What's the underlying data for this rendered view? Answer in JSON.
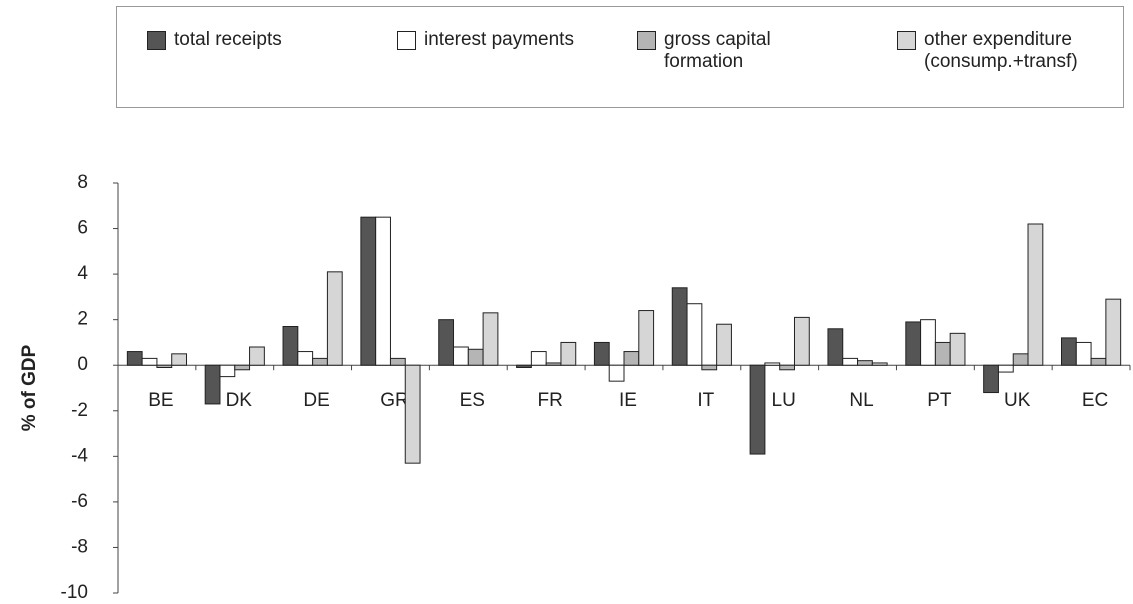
{
  "chart_data": {
    "type": "bar",
    "y_label": "% of GDP",
    "categories": [
      "BE",
      "DK",
      "DE",
      "GR",
      "ES",
      "FR",
      "IE",
      "IT",
      "LU",
      "NL",
      "PT",
      "UK",
      "EC"
    ],
    "series": [
      {
        "name": "total receipts",
        "color": "#555555",
        "values": [
          0.6,
          -1.7,
          1.7,
          6.5,
          2.0,
          -0.1,
          1.0,
          3.4,
          -3.9,
          1.6,
          1.9,
          -1.2,
          1.2
        ]
      },
      {
        "name": "interest payments",
        "color": "#ffffff",
        "values": [
          0.3,
          -0.5,
          0.6,
          6.5,
          0.8,
          0.6,
          -0.7,
          2.7,
          0.1,
          0.3,
          2.0,
          -0.3,
          1.0
        ]
      },
      {
        "name": "gross capital formation",
        "color": "#b5b5b5",
        "values": [
          -0.1,
          -0.2,
          0.3,
          0.3,
          0.7,
          0.1,
          0.6,
          -0.2,
          -0.2,
          0.2,
          1.0,
          0.5,
          0.3
        ]
      },
      {
        "name": "other expenditure (consump.+transf)",
        "color": "#d6d6d6",
        "values": [
          0.5,
          0.8,
          4.1,
          -4.3,
          2.3,
          1.0,
          2.4,
          1.8,
          2.1,
          0.1,
          1.4,
          6.2,
          2.9
        ]
      }
    ],
    "ylim": [
      -10,
      8
    ],
    "yticks": [
      -10,
      -8,
      -6,
      -4,
      -2,
      0,
      2,
      4,
      6,
      8
    ]
  }
}
